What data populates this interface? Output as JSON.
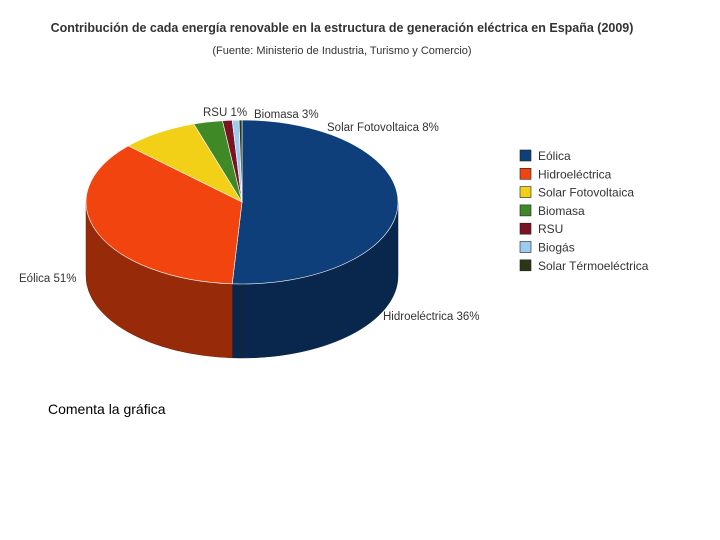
{
  "chart_data": {
    "type": "pie",
    "style": "3d",
    "title": "Contribución de cada energía renovable en la estructura de generación eléctrica en España (2009)",
    "subtitle": "(Fuente: Ministerio de Industria, Turismo y Comercio)",
    "legend_position": "right",
    "slices": [
      {
        "name": "Eólica",
        "value": 51,
        "label": "Eólica 51%",
        "color": "#0e3f7a"
      },
      {
        "name": "Hidroeléctrica",
        "value": 36,
        "label": "Hidroeléctrica 36%",
        "color": "#f2440e"
      },
      {
        "name": "Solar Fotovoltaica",
        "value": 8,
        "label": "Solar Fotovoltaica 8%",
        "color": "#f2d018"
      },
      {
        "name": "Biomasa",
        "value": 3,
        "label": "Biomasa 3%",
        "color": "#3f8a26"
      },
      {
        "name": "RSU",
        "value": 1,
        "label": "RSU 1%",
        "color": "#7a1424"
      },
      {
        "name": "Biogás",
        "value": 0.7,
        "label": "",
        "color": "#9ccdf0"
      },
      {
        "name": "Solar Térmoeléctrica",
        "value": 0.3,
        "label": "",
        "color": "#2c3616"
      }
    ]
  },
  "caption": "Comenta la gráfica"
}
